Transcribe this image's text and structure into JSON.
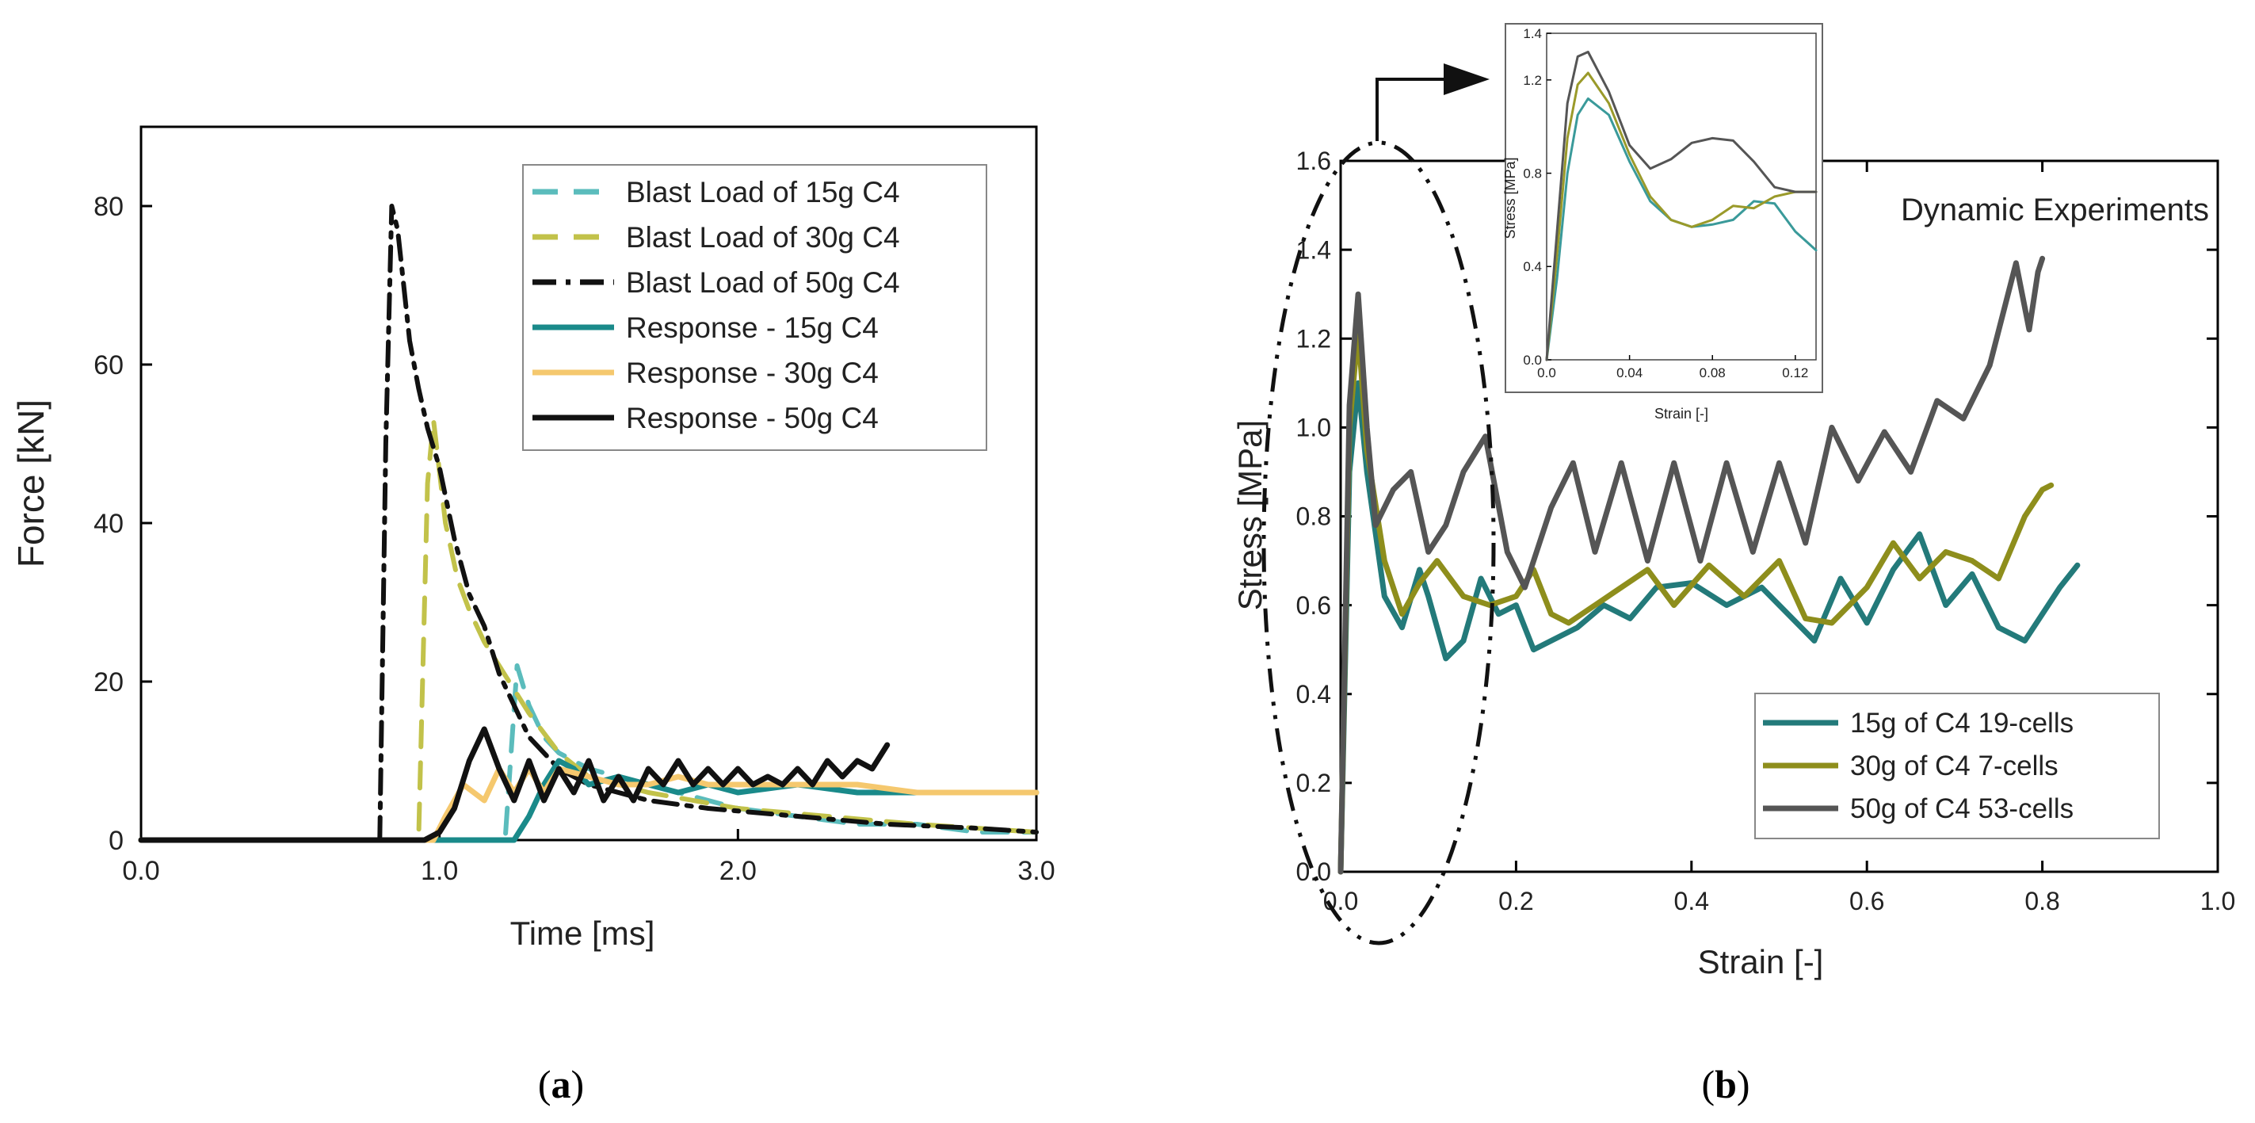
{
  "chart_data": [
    {
      "panel": "a",
      "caption": "a",
      "type": "line",
      "xlabel": "Time [ms]",
      "ylabel": "Force [kN]",
      "xlim": [
        0,
        3
      ],
      "ylim": [
        0,
        90
      ],
      "xticks": [
        "0.0",
        "1.0",
        "2.0",
        "3.0"
      ],
      "yticks": [
        "0",
        "20",
        "40",
        "60",
        "80"
      ],
      "legend_position": "top-right",
      "series": [
        {
          "name": "Blast Load of 15g C4",
          "style": "dash",
          "color": "#5bbcbc",
          "x": [
            0,
            1.22,
            1.26,
            1.3,
            1.35,
            1.4,
            1.45,
            1.5,
            1.6,
            1.8,
            2.0,
            2.2,
            2.4,
            2.6,
            2.8,
            3.0
          ],
          "y": [
            0,
            0,
            22,
            17,
            13,
            11,
            10,
            9,
            8,
            6,
            4,
            3,
            2,
            2,
            1,
            1
          ]
        },
        {
          "name": "Blast Load of 30g C4",
          "style": "dash",
          "color": "#c2c24a",
          "x": [
            0,
            0.93,
            0.96,
            0.98,
            1.02,
            1.06,
            1.1,
            1.15,
            1.2,
            1.25,
            1.3,
            1.4,
            1.5,
            1.7,
            2.0,
            2.3,
            2.6,
            3.0
          ],
          "y": [
            0,
            0,
            45,
            53,
            40,
            33,
            29,
            25,
            22,
            19,
            16,
            11,
            8,
            6,
            4,
            3,
            2,
            1
          ]
        },
        {
          "name": "Blast Load of 50g C4",
          "style": "dash-dot",
          "color": "#111111",
          "x": [
            0,
            0.8,
            0.82,
            0.84,
            0.86,
            0.88,
            0.9,
            0.93,
            0.96,
            1.0,
            1.05,
            1.1,
            1.15,
            1.2,
            1.3,
            1.4,
            1.5,
            1.7,
            1.9,
            2.2,
            2.5,
            2.8,
            3.0
          ],
          "y": [
            0,
            0,
            50,
            80,
            77,
            70,
            63,
            57,
            52,
            47,
            38,
            31,
            27,
            21,
            13,
            9,
            7,
            5,
            4,
            3,
            2,
            1.5,
            1
          ]
        },
        {
          "name": "Response - 15g C4",
          "style": "solid",
          "color": "#1a8a8a",
          "x": [
            0,
            1.25,
            1.3,
            1.35,
            1.4,
            1.45,
            1.5,
            1.6,
            1.7,
            1.8,
            1.9,
            2.0,
            2.2,
            2.4,
            2.6,
            2.8,
            3.0
          ],
          "y": [
            0,
            0,
            3,
            7,
            10,
            9,
            7,
            8,
            7,
            6,
            7,
            6,
            7,
            6,
            6,
            6,
            6
          ]
        },
        {
          "name": "Response - 30g C4",
          "style": "solid",
          "color": "#f5c86e",
          "x": [
            0,
            0.98,
            1.02,
            1.08,
            1.15,
            1.2,
            1.25,
            1.3,
            1.35,
            1.4,
            1.5,
            1.6,
            1.7,
            1.8,
            1.9,
            2.0,
            2.2,
            2.4,
            2.6,
            2.8,
            3.0
          ],
          "y": [
            0,
            0,
            3,
            7,
            5,
            9,
            6,
            9,
            6,
            9,
            8,
            7,
            7,
            8,
            7,
            7,
            7,
            7,
            6,
            6,
            6
          ]
        },
        {
          "name": "Response - 50g C4",
          "style": "solid",
          "color": "#111111",
          "x": [
            0,
            0.95,
            1.0,
            1.05,
            1.1,
            1.15,
            1.2,
            1.25,
            1.3,
            1.35,
            1.4,
            1.45,
            1.5,
            1.55,
            1.6,
            1.65,
            1.7,
            1.75,
            1.8,
            1.85,
            1.9,
            1.95,
            2.0,
            2.05,
            2.1,
            2.15,
            2.2,
            2.25,
            2.3,
            2.35,
            2.4,
            2.45,
            2.5
          ],
          "y": [
            0,
            0,
            1,
            4,
            10,
            14,
            9,
            5,
            10,
            5,
            9,
            6,
            10,
            5,
            8,
            5,
            9,
            7,
            10,
            7,
            9,
            7,
            9,
            7,
            8,
            7,
            9,
            7,
            10,
            8,
            10,
            9,
            12
          ]
        }
      ]
    },
    {
      "panel": "b",
      "caption": "b",
      "type": "line",
      "title": "Dynamic Experiments",
      "xlabel": "Strain [-]",
      "ylabel": "Stress [MPa]",
      "xlim": [
        0,
        1
      ],
      "ylim": [
        0,
        1.6
      ],
      "xticks": [
        "0.0",
        "0.2",
        "0.4",
        "0.6",
        "0.8",
        "1.0"
      ],
      "yticks": [
        "0.0",
        "0.2",
        "0.4",
        "0.6",
        "0.8",
        "1.0",
        "1.2",
        "1.4",
        "1.6"
      ],
      "legend_position": "bottom-right",
      "series": [
        {
          "name": "15g of C4 19-cells",
          "color": "#237a7a",
          "x": [
            0,
            0.01,
            0.02,
            0.03,
            0.05,
            0.07,
            0.09,
            0.1,
            0.12,
            0.14,
            0.16,
            0.18,
            0.2,
            0.22,
            0.24,
            0.27,
            0.3,
            0.33,
            0.36,
            0.4,
            0.44,
            0.48,
            0.51,
            0.54,
            0.57,
            0.6,
            0.63,
            0.66,
            0.69,
            0.72,
            0.75,
            0.78,
            0.8,
            0.82,
            0.84
          ],
          "y": [
            0,
            0.9,
            1.1,
            0.9,
            0.62,
            0.55,
            0.68,
            0.62,
            0.48,
            0.52,
            0.66,
            0.58,
            0.6,
            0.5,
            0.52,
            0.55,
            0.6,
            0.57,
            0.64,
            0.65,
            0.6,
            0.64,
            0.58,
            0.52,
            0.66,
            0.56,
            0.68,
            0.76,
            0.6,
            0.67,
            0.55,
            0.52,
            0.58,
            0.64,
            0.69
          ]
        },
        {
          "name": "30g of C4 7-cells",
          "color": "#8e8e1c",
          "x": [
            0,
            0.01,
            0.02,
            0.03,
            0.05,
            0.07,
            0.09,
            0.11,
            0.14,
            0.17,
            0.2,
            0.22,
            0.24,
            0.26,
            0.29,
            0.32,
            0.35,
            0.38,
            0.42,
            0.46,
            0.5,
            0.53,
            0.56,
            0.6,
            0.63,
            0.66,
            0.69,
            0.72,
            0.75,
            0.78,
            0.8,
            0.81
          ],
          "y": [
            0,
            1.0,
            1.22,
            0.95,
            0.7,
            0.58,
            0.65,
            0.7,
            0.62,
            0.6,
            0.62,
            0.68,
            0.58,
            0.56,
            0.6,
            0.64,
            0.68,
            0.6,
            0.69,
            0.62,
            0.7,
            0.57,
            0.56,
            0.64,
            0.74,
            0.66,
            0.72,
            0.7,
            0.66,
            0.8,
            0.86,
            0.87
          ]
        },
        {
          "name": "50g of C4 53-cells",
          "color": "#555555",
          "x": [
            0,
            0.01,
            0.02,
            0.03,
            0.04,
            0.06,
            0.08,
            0.1,
            0.12,
            0.14,
            0.165,
            0.19,
            0.21,
            0.24,
            0.265,
            0.29,
            0.32,
            0.35,
            0.38,
            0.41,
            0.44,
            0.47,
            0.5,
            0.53,
            0.56,
            0.59,
            0.62,
            0.65,
            0.68,
            0.71,
            0.74,
            0.77,
            0.785,
            0.795,
            0.8
          ],
          "y": [
            0,
            1.05,
            1.3,
            1.0,
            0.78,
            0.86,
            0.9,
            0.72,
            0.78,
            0.9,
            0.98,
            0.72,
            0.64,
            0.82,
            0.92,
            0.72,
            0.92,
            0.7,
            0.92,
            0.7,
            0.92,
            0.72,
            0.92,
            0.74,
            1.0,
            0.88,
            0.99,
            0.9,
            1.06,
            1.02,
            1.14,
            1.37,
            1.22,
            1.35,
            1.38
          ]
        }
      ],
      "inset": {
        "xlabel": "Strain [-]",
        "ylabel": "Stress [MPa]",
        "xlim": [
          0,
          0.13
        ],
        "ylim": [
          0,
          1.4
        ],
        "xticks": [
          "0.0",
          "0.04",
          "0.08",
          "0.12"
        ],
        "yticks": [
          "0.0",
          "0.4",
          "0.8",
          "1.2",
          "1.4"
        ],
        "series": [
          {
            "name": "15g of C4 19-cells",
            "color": "#3a9a9a",
            "x": [
              0,
              0.005,
              0.01,
              0.015,
              0.02,
              0.03,
              0.04,
              0.05,
              0.06,
              0.07,
              0.08,
              0.09,
              0.1,
              0.11,
              0.12,
              0.13
            ],
            "y": [
              0,
              0.35,
              0.8,
              1.05,
              1.12,
              1.05,
              0.85,
              0.68,
              0.6,
              0.57,
              0.58,
              0.6,
              0.68,
              0.67,
              0.55,
              0.47
            ]
          },
          {
            "name": "30g of C4 7-cells",
            "color": "#9a9a2a",
            "x": [
              0,
              0.005,
              0.01,
              0.015,
              0.02,
              0.03,
              0.04,
              0.05,
              0.06,
              0.07,
              0.08,
              0.09,
              0.1,
              0.11,
              0.12,
              0.13
            ],
            "y": [
              0,
              0.45,
              0.95,
              1.18,
              1.23,
              1.1,
              0.88,
              0.7,
              0.6,
              0.57,
              0.6,
              0.66,
              0.65,
              0.7,
              0.72,
              0.72
            ]
          },
          {
            "name": "50g of C4 53-cells",
            "color": "#555555",
            "x": [
              0,
              0.005,
              0.01,
              0.015,
              0.02,
              0.03,
              0.04,
              0.05,
              0.06,
              0.07,
              0.08,
              0.09,
              0.1,
              0.11,
              0.12,
              0.13
            ],
            "y": [
              0,
              0.55,
              1.1,
              1.3,
              1.32,
              1.15,
              0.92,
              0.82,
              0.86,
              0.93,
              0.95,
              0.94,
              0.85,
              0.74,
              0.72,
              0.72
            ]
          }
        ]
      }
    }
  ]
}
